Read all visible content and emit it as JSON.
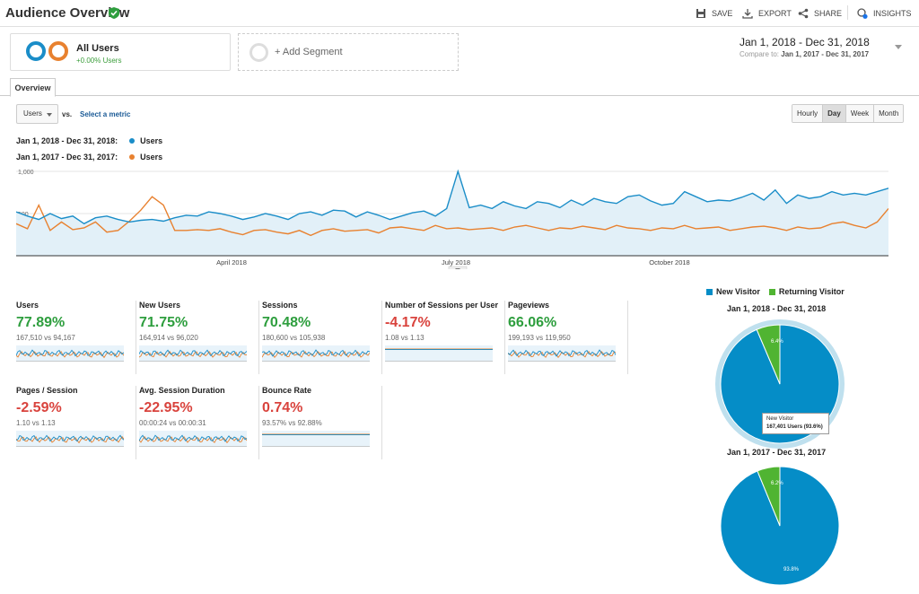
{
  "header": {
    "title": "Audience Overview",
    "actions": [
      {
        "label": "SAVE",
        "icon": "save-icon"
      },
      {
        "label": "EXPORT",
        "icon": "export-icon"
      },
      {
        "label": "SHARE",
        "icon": "share-icon"
      },
      {
        "label": "INSIGHTS",
        "icon": "insights-icon"
      }
    ]
  },
  "segment": {
    "name": "All Users",
    "change": "+0.00% Users",
    "add_label": "+ Add Segment"
  },
  "date": {
    "range": "Jan 1, 2018 - Dec 31, 2018",
    "compare_label": "Compare to:",
    "compare_range": "Jan 1, 2017 - Dec 31, 2017"
  },
  "tabs": {
    "overview": "Overview"
  },
  "controls": {
    "metric": "Users",
    "vs": "vs.",
    "select_metric": "Select a metric",
    "granularity": [
      "Hourly",
      "Day",
      "Week",
      "Month"
    ],
    "granularity_active": "Day"
  },
  "colors": {
    "current": "#1a8dc8",
    "previous": "#e8812f",
    "new_visitor": "#058dc7",
    "returning_visitor": "#50b432",
    "green": "#2e9e3e",
    "red": "#d9433d"
  },
  "chart_legend": [
    {
      "range": "Jan 1, 2018 - Dec 31, 2018:",
      "series": "Users"
    },
    {
      "range": "Jan 1, 2017 - Dec 31, 2017:",
      "series": "Users"
    }
  ],
  "chart_data": {
    "type": "line",
    "ylim": [
      0,
      1000
    ],
    "y_ticks": [
      "1,000",
      "500"
    ],
    "x_ticks": [
      "April 2018",
      "July 2018",
      "October 2018"
    ],
    "series": [
      {
        "name": "Users",
        "values": [
          520,
          470,
          430,
          500,
          440,
          470,
          380,
          450,
          470,
          430,
          400,
          420,
          430,
          410,
          450,
          480,
          470,
          520,
          500,
          470,
          430,
          460,
          500,
          470,
          430,
          500,
          520,
          480,
          540,
          530,
          460,
          520,
          480,
          430,
          470,
          510,
          530,
          470,
          560,
          1000,
          570,
          600,
          560,
          640,
          590,
          560,
          640,
          620,
          570,
          660,
          600,
          680,
          640,
          620,
          700,
          720,
          650,
          600,
          620,
          760,
          700,
          640,
          660,
          650,
          690,
          740,
          660,
          780,
          620,
          720,
          680,
          700,
          760,
          720,
          740,
          720,
          760,
          800
        ]
      },
      {
        "name": "Users",
        "values": [
          380,
          320,
          600,
          300,
          400,
          310,
          330,
          400,
          280,
          300,
          410,
          540,
          700,
          600,
          300,
          300,
          310,
          300,
          320,
          280,
          250,
          300,
          310,
          280,
          260,
          300,
          240,
          300,
          320,
          290,
          300,
          310,
          270,
          330,
          340,
          320,
          300,
          360,
          320,
          330,
          310,
          320,
          330,
          300,
          340,
          360,
          330,
          300,
          330,
          320,
          350,
          330,
          310,
          360,
          330,
          320,
          300,
          330,
          320,
          360,
          320,
          330,
          340,
          300,
          320,
          340,
          350,
          330,
          300,
          340,
          320,
          330,
          380,
          400,
          360,
          330,
          400,
          560
        ]
      }
    ]
  },
  "metrics": [
    {
      "label": "Users",
      "pct": "77.89%",
      "dir": "up",
      "compare": "167,510 vs 94,167"
    },
    {
      "label": "New Users",
      "pct": "71.75%",
      "dir": "up",
      "compare": "164,914 vs 96,020"
    },
    {
      "label": "Sessions",
      "pct": "70.48%",
      "dir": "up",
      "compare": "180,600 vs 105,938"
    },
    {
      "label": "Number of Sessions per User",
      "pct": "-4.17%",
      "dir": "down",
      "compare": "1.08 vs 1.13"
    },
    {
      "label": "Pageviews",
      "pct": "66.06%",
      "dir": "up",
      "compare": "199,193 vs 119,950"
    },
    {
      "label": "Pages / Session",
      "pct": "-2.59%",
      "dir": "down",
      "compare": "1.10 vs 1.13"
    },
    {
      "label": "Avg. Session Duration",
      "pct": "-22.95%",
      "dir": "down",
      "compare": "00:00:24 vs 00:00:31"
    },
    {
      "label": "Bounce Rate",
      "pct": "0.74%",
      "dir": "down",
      "compare": "93.57% vs 92.88%"
    }
  ],
  "pies": {
    "legend": [
      "New Visitor",
      "Returning Visitor"
    ],
    "charts": [
      {
        "title": "Jan 1, 2018 - Dec 31, 2018",
        "new_pct": 93.6,
        "returning_label": "6.4%",
        "new_label": ""
      },
      {
        "title": "Jan 1, 2017 - Dec 31, 2017",
        "new_pct": 93.8,
        "returning_label": "6.2%",
        "new_label": "93.8%"
      }
    ],
    "tooltip": {
      "title": "New Visitor",
      "value": "167,401 Users (93.6%)"
    }
  }
}
